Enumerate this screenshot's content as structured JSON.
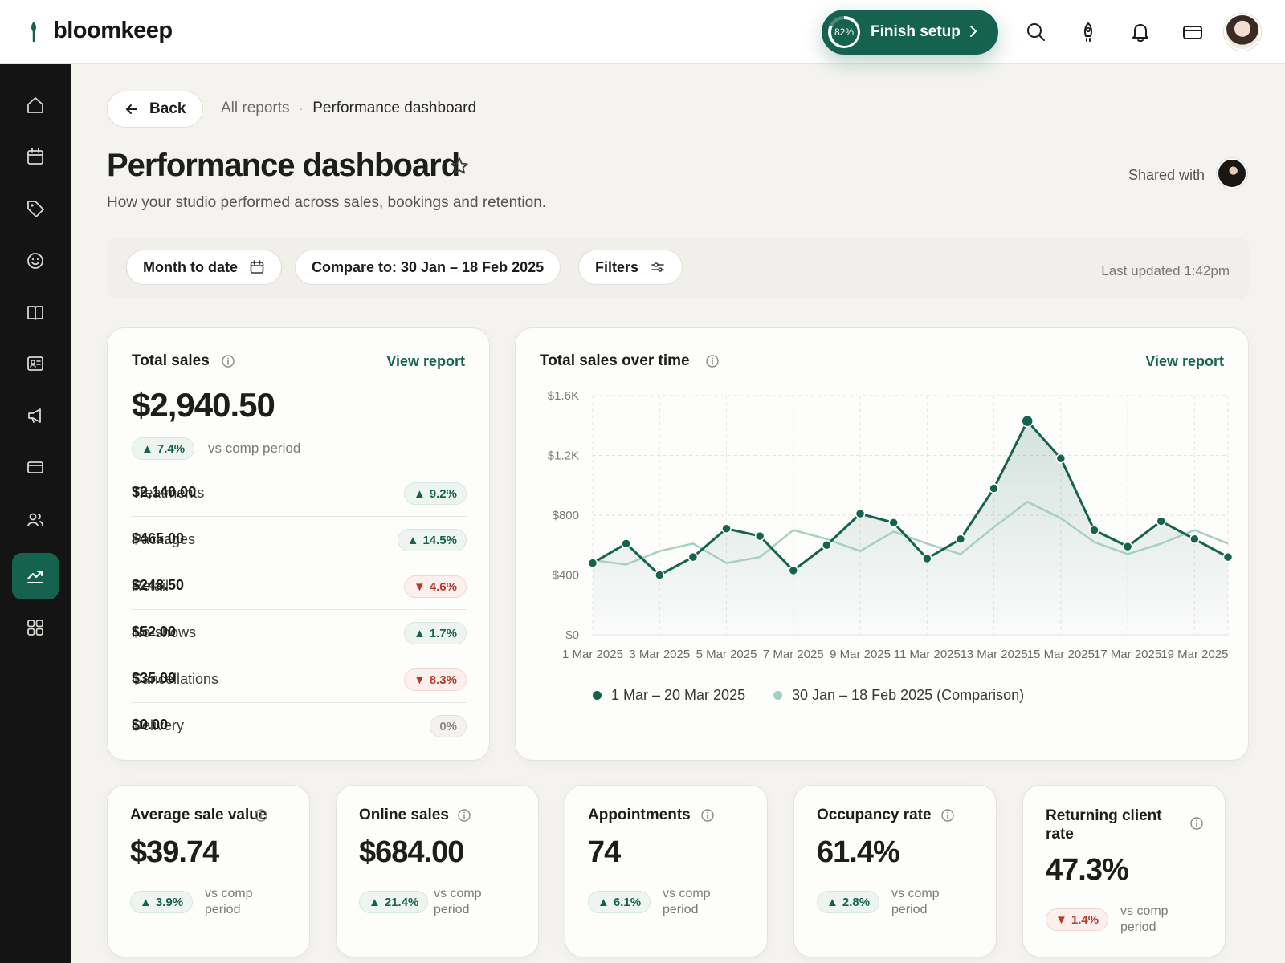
{
  "app": {
    "brand": "bloomkeep",
    "finish_setup": {
      "label": "Finish setup",
      "progress_label": "82%",
      "progress": 0.82
    },
    "top_icons": [
      "search-icon",
      "rocket-icon",
      "bell-icon",
      "card-icon"
    ],
    "accent": "#15634f",
    "up_color": "#15634f",
    "down_color": "#b8392c"
  },
  "sidebar": {
    "items": [
      {
        "icon": "home-icon"
      },
      {
        "icon": "calendar-icon"
      },
      {
        "icon": "tag-icon"
      },
      {
        "icon": "smiley-icon"
      },
      {
        "icon": "book-icon"
      },
      {
        "icon": "contact-card-icon"
      },
      {
        "icon": "megaphone-icon"
      },
      {
        "icon": "payment-card-icon"
      },
      {
        "icon": "team-icon"
      },
      {
        "icon": "reports-icon",
        "active": true
      },
      {
        "icon": "apps-grid-icon"
      }
    ]
  },
  "header": {
    "back_label": "Back",
    "breadcrumb": {
      "parent": "All reports",
      "separator": "·",
      "current": "Performance dashboard"
    },
    "title": "Performance dashboard",
    "subtitle": "How your studio performed across sales, bookings and retention.",
    "shared_with_label": "Shared with"
  },
  "filters": {
    "date_range": "Month to date",
    "compare": "Compare to: 30 Jan – 18 Feb 2025",
    "filters_label": "Filters",
    "last_updated": "Last updated 1:42pm"
  },
  "total_sales": {
    "title": "Total sales",
    "view_report": "View report",
    "value": "$2,940.50",
    "change": "7.4%",
    "change_dir": "up",
    "vs_label": "vs comp period",
    "rows": [
      {
        "label": "Treatments",
        "value": "$2,140.00",
        "change": "9.2%",
        "dir": "up"
      },
      {
        "label": "Packages",
        "value": "$465.00",
        "change": "14.5%",
        "dir": "up"
      },
      {
        "label": "Retail",
        "value": "$248.50",
        "change": "4.6%",
        "dir": "down"
      },
      {
        "label": "No-shows",
        "value": "$52.00",
        "change": "1.7%",
        "dir": "up"
      },
      {
        "label": "Cancellations",
        "value": "$35.00",
        "change": "8.3%",
        "dir": "down"
      },
      {
        "label": "Delivery",
        "value": "$0.00",
        "change": "0%",
        "dir": "neutral"
      }
    ]
  },
  "sales_over_time": {
    "title": "Total sales over time",
    "view_report": "View report"
  },
  "chart_data": {
    "type": "line",
    "x": [
      "1 Mar 2025",
      "2 Mar 2025",
      "3 Mar 2025",
      "4 Mar 2025",
      "5 Mar 2025",
      "6 Mar 2025",
      "7 Mar 2025",
      "8 Mar 2025",
      "9 Mar 2025",
      "10 Mar 2025",
      "11 Mar 2025",
      "12 Mar 2025",
      "13 Mar 2025",
      "14 Mar 2025",
      "15 Mar 2025",
      "16 Mar 2025",
      "17 Mar 2025",
      "18 Mar 2025",
      "19 Mar 2025",
      "20 Mar 2025"
    ],
    "tick_labels": [
      "1 Mar 2025",
      "3 Mar 2025",
      "5 Mar 2025",
      "7 Mar 2025",
      "9 Mar 2025",
      "11 Mar 2025",
      "13 Mar 2025",
      "15 Mar 2025",
      "17 Mar 2025",
      "19 Mar 2025"
    ],
    "y_ticks": [
      "$0",
      "$400",
      "$800",
      "$1.2K",
      "$1.6K"
    ],
    "ylim": [
      0,
      1600
    ],
    "grid": true,
    "legend_position": "bottom",
    "series": [
      {
        "name": "1 Mar – 20 Mar 2025",
        "color": "#15634f",
        "values": [
          480,
          610,
          400,
          520,
          710,
          660,
          430,
          600,
          810,
          750,
          510,
          640,
          980,
          1430,
          1180,
          700,
          590,
          760,
          640,
          520
        ]
      },
      {
        "name": "30 Jan – 18 Feb 2025 (Comparison)",
        "color": "#a8d0c2",
        "values": [
          500,
          470,
          560,
          610,
          480,
          520,
          700,
          640,
          560,
          690,
          610,
          540,
          720,
          890,
          780,
          620,
          540,
          610,
          700,
          610
        ]
      }
    ]
  },
  "metrics": [
    {
      "title": "Average sale value",
      "value": "$39.74",
      "change": "3.9%",
      "dir": "up",
      "vs": [
        "vs comp",
        "period"
      ]
    },
    {
      "title": "Online sales",
      "value": "$684.00",
      "change": "21.4%",
      "dir": "up",
      "vs": [
        "vs comp",
        "period"
      ]
    },
    {
      "title": "Appointments",
      "value": "74",
      "change": "6.1%",
      "dir": "up",
      "vs": [
        "vs comp",
        "period"
      ]
    },
    {
      "title": "Occupancy rate",
      "value": "61.4%",
      "change": "2.8%",
      "dir": "up",
      "vs": [
        "vs comp",
        "period"
      ]
    },
    {
      "title_lines": [
        "Returning client",
        "rate"
      ],
      "value": "47.3%",
      "change": "1.4%",
      "dir": "down",
      "vs": [
        "vs comp",
        "period"
      ]
    }
  ]
}
